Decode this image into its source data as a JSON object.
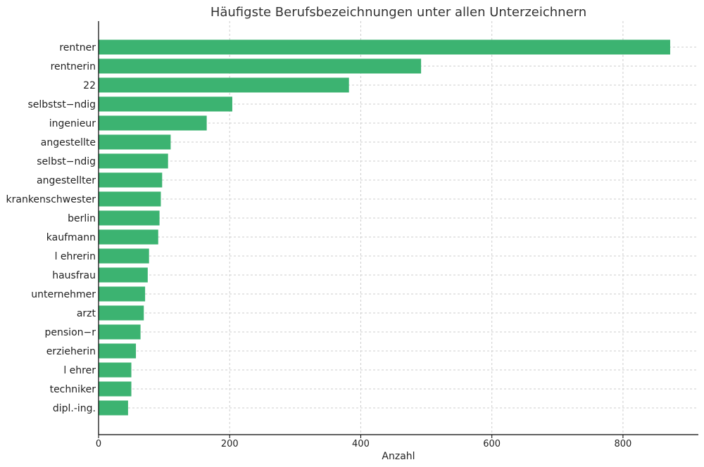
{
  "chart_data": {
    "type": "bar",
    "orientation": "horizontal",
    "title": "Häufigste Berufsbezeichnungen unter allen Unterzeichnern",
    "xlabel": "Anzahl",
    "ylabel": "",
    "xlim": [
      0,
      915
    ],
    "xticks": [
      0,
      200,
      400,
      600,
      800
    ],
    "grid": true,
    "bar_color": "#3cb371",
    "categories": [
      "rentner",
      "rentnerin",
      "22",
      "selbstst−ndig",
      "ingenieur",
      "angestellte",
      "selbst−ndig",
      "angestellter",
      "krankenschwester",
      "berlin",
      "kaufmann",
      "l ehrerin",
      "hausfrau",
      "unternehmer",
      "arzt",
      "pension−r",
      "erzieherin",
      "l ehrer",
      "techniker",
      "dipl.-ing."
    ],
    "values": [
      872,
      492,
      382,
      204,
      165,
      110,
      106,
      97,
      95,
      93,
      91,
      77,
      75,
      71,
      69,
      64,
      57,
      50,
      50,
      45
    ]
  }
}
